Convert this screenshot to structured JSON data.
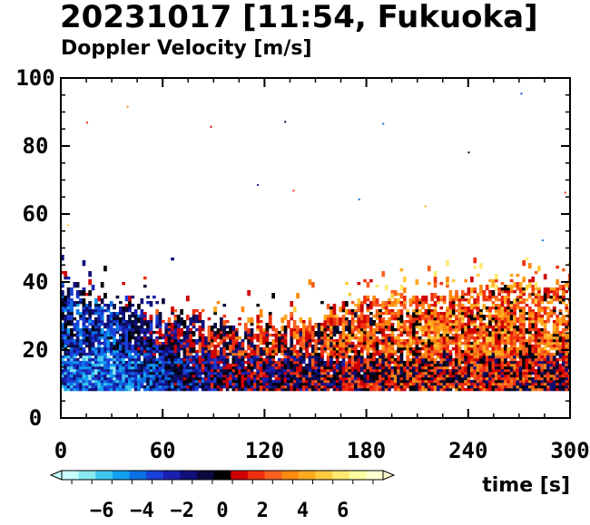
{
  "chart_data": {
    "type": "heatmap",
    "title": "20231017 [11:54, Fukuoka]",
    "subtitle": "Doppler Velocity [m/s]",
    "xlabel": "time [s]",
    "ylabel": "",
    "xlim": [
      0,
      300
    ],
    "ylim": [
      0,
      100
    ],
    "x_ticks": [
      "0",
      "60",
      "120",
      "180",
      "240",
      "300"
    ],
    "y_ticks": [
      "0",
      "20",
      "40",
      "60",
      "80",
      "100"
    ],
    "grid": false,
    "colorbar": {
      "label": "Doppler Velocity [m/s]",
      "range": [
        -8,
        8
      ],
      "ticks": [
        "-6",
        "-4",
        "-2",
        "0",
        "2",
        "4",
        "6"
      ],
      "colors": [
        "#c8ffff",
        "#8ae8f0",
        "#40c8f0",
        "#10a0f0",
        "#0a70e6",
        "#1a40d8",
        "#1a20b0",
        "#10107a",
        "#0a0a40",
        "#000000",
        "#d00000",
        "#f03010",
        "#f86020",
        "#ff8a10",
        "#ffaa20",
        "#ffcc40",
        "#ffea70",
        "#ffffa0",
        "#ffffd0"
      ]
    },
    "echo_region": {
      "min_height": 8,
      "typical_top": 28,
      "max_height": 47
    },
    "profile": [
      {
        "time": 0,
        "top": 37,
        "mean_velocity": -2.5
      },
      {
        "time": 30,
        "top": 33,
        "mean_velocity": -3.0
      },
      {
        "time": 60,
        "top": 28,
        "mean_velocity": -1.0
      },
      {
        "time": 90,
        "top": 27,
        "mean_velocity": 0.5
      },
      {
        "time": 120,
        "top": 25,
        "mean_velocity": 1.0
      },
      {
        "time": 150,
        "top": 27,
        "mean_velocity": 1.5
      },
      {
        "time": 180,
        "top": 33,
        "mean_velocity": 2.0
      },
      {
        "time": 210,
        "top": 35,
        "mean_velocity": 2.5
      },
      {
        "time": 240,
        "top": 37,
        "mean_velocity": 2.5
      },
      {
        "time": 270,
        "top": 38,
        "mean_velocity": 2.5
      },
      {
        "time": 300,
        "top": 38,
        "mean_velocity": 2.0
      }
    ]
  }
}
